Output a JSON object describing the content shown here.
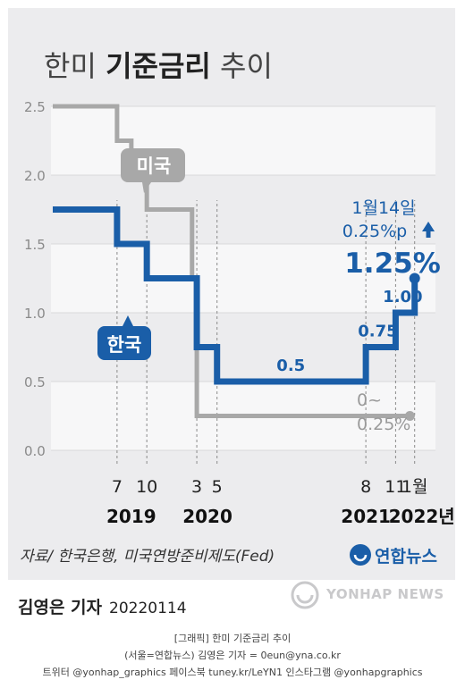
{
  "title": {
    "light_a": "한미",
    "bold": "기준금리",
    "light_b": "추이"
  },
  "colors": {
    "korea": "#1a5ea8",
    "us": "#a8a8a8",
    "background": "#ececee",
    "band": "#f7f7f8"
  },
  "chart_data": {
    "type": "line",
    "step": true,
    "ylim": [
      0,
      2.5
    ],
    "y_ticks": [
      "0.0",
      "0.5",
      "1.0",
      "1.5",
      "2.0",
      "2.5"
    ],
    "x_ticks": [
      {
        "label": "7",
        "x": 2019.54
      },
      {
        "label": "10",
        "x": 2019.79
      },
      {
        "label": "3",
        "x": 2020.21
      },
      {
        "label": "5",
        "x": 2020.38
      },
      {
        "label": "8",
        "x": 2021.63
      },
      {
        "label": "11",
        "x": 2021.88
      },
      {
        "label": "1월",
        "x": 2022.04
      }
    ],
    "year_labels": [
      {
        "label": "2019",
        "x": 2019.66
      },
      {
        "label": "2020",
        "x": 2020.3
      },
      {
        "label": "2021",
        "x": 2021.63
      },
      {
        "label": "2022년",
        "x": 2022.1
      }
    ],
    "series": [
      {
        "name": "미국",
        "points": [
          [
            2019.0,
            2.5
          ],
          [
            2019.54,
            2.5
          ],
          [
            2019.54,
            2.25
          ],
          [
            2019.66,
            2.25
          ],
          [
            2019.66,
            2.0
          ],
          [
            2019.79,
            2.0
          ],
          [
            2019.79,
            1.75
          ],
          [
            2020.17,
            1.75
          ],
          [
            2020.17,
            1.25
          ],
          [
            2020.21,
            1.25
          ],
          [
            2020.21,
            0.25
          ],
          [
            2022.0,
            0.25
          ]
        ],
        "end_label": [
          "0~",
          "0.25%"
        ]
      },
      {
        "name": "한국",
        "points": [
          [
            2019.0,
            1.75
          ],
          [
            2019.54,
            1.75
          ],
          [
            2019.54,
            1.5
          ],
          [
            2019.79,
            1.5
          ],
          [
            2019.79,
            1.25
          ],
          [
            2020.21,
            1.25
          ],
          [
            2020.21,
            0.75
          ],
          [
            2020.38,
            0.75
          ],
          [
            2020.38,
            0.5
          ],
          [
            2021.63,
            0.5
          ],
          [
            2021.63,
            0.75
          ],
          [
            2021.88,
            0.75
          ],
          [
            2021.88,
            1.0
          ],
          [
            2022.04,
            1.0
          ],
          [
            2022.04,
            1.25
          ]
        ],
        "value_labels": [
          {
            "text": "0.5",
            "x": 2021.0,
            "y": 0.5
          },
          {
            "text": "0.75",
            "x": 2021.73,
            "y": 0.75
          },
          {
            "text": "1.00",
            "x": 2021.94,
            "y": 1.0
          }
        ],
        "annotation": {
          "date": "1월14일",
          "change": "0.25%p",
          "value": "1.25%"
        }
      }
    ]
  },
  "source": "자료/ 한국은행, 미국연방준비제도(Fed)",
  "logo_text": "연합뉴스",
  "reporter": "김영은 기자",
  "date_code": "20220114",
  "watermark": "YONHAP NEWS",
  "meta_lines": [
    "[그래픽] 한미 기준금리 추이",
    "(서울=연합뉴스) 김영은 기자 = 0eun@yna.co.kr",
    "트위터 @yonhap_graphics 페이스북 tuney.kr/LeYN1 인스타그램 @yonhapgraphics"
  ]
}
